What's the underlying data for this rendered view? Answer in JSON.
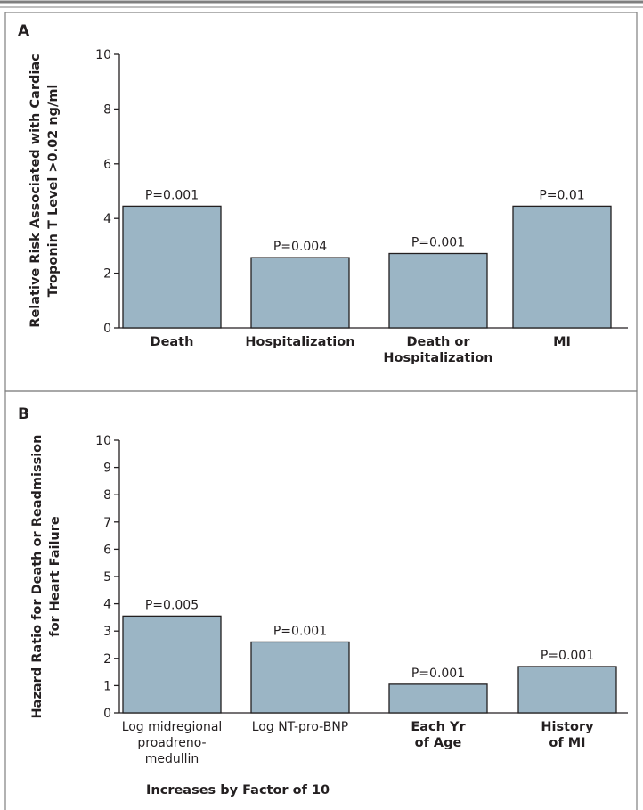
{
  "chart_data": [
    {
      "type": "bar",
      "panel": "A",
      "categories": [
        [
          "Death"
        ],
        [
          "Hospitalization"
        ],
        [
          "Death or",
          "Hospitalization"
        ],
        [
          "MI"
        ]
      ],
      "category_style": [
        "bold",
        "bold",
        "bold",
        "bold"
      ],
      "values": [
        4.45,
        2.57,
        2.72,
        4.45
      ],
      "annotations": [
        "P=0.001",
        "P=0.004",
        "P=0.001",
        "P=0.01"
      ],
      "ylabel": [
        "Relative Risk Associated with Cardiac",
        "Troponin T Level >0.02 ng/ml"
      ],
      "xlabel": "",
      "ylim": [
        0,
        10
      ],
      "yticks": [
        0,
        2,
        4,
        6,
        8,
        10
      ],
      "grid": false
    },
    {
      "type": "bar",
      "panel": "B",
      "categories": [
        [
          "Log midregional",
          "proadreno-",
          "medullin"
        ],
        [
          "Log NT-pro-BNP"
        ],
        [
          "Each Yr",
          "of Age"
        ],
        [
          "History",
          "of MI"
        ]
      ],
      "category_style": [
        "normal",
        "normal",
        "bold",
        "bold"
      ],
      "values": [
        3.55,
        2.6,
        1.05,
        1.7
      ],
      "annotations": [
        "P=0.005",
        "P=0.001",
        "P=0.001",
        "P=0.001"
      ],
      "ylabel": [
        "Hazard Ratio for Death or Readmission",
        "for Heart Failure"
      ],
      "xlabel": "",
      "ylim": [
        0,
        10
      ],
      "yticks": [
        0,
        1,
        2,
        3,
        4,
        5,
        6,
        7,
        8,
        9,
        10
      ],
      "grid": false,
      "footnote": "Increases by Factor of 10"
    }
  ],
  "colors": {
    "bar_fill": "#9bb5c5",
    "ink": "#231f20",
    "frame": "#7f7f7f"
  }
}
